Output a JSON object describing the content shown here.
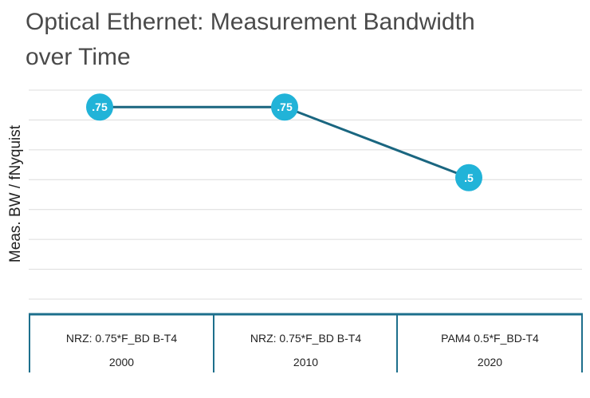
{
  "chart_data": {
    "type": "line",
    "title": "Optical Ethernet: Measurement Bandwidth over Time",
    "ylabel": "Meas. BW / fNyquist",
    "xlabel": "",
    "categories": [
      "2000",
      "2010",
      "2020"
    ],
    "category_labels": [
      "NRZ: 0.75*F_BD B-T4",
      "NRZ: 0.75*F_BD B-T4",
      "PAM4 0.5*F_BD-T4"
    ],
    "values": [
      0.75,
      0.75,
      0.5
    ],
    "data_labels": [
      ".75",
      ".75",
      ".5"
    ],
    "ylim": [
      0.07,
      0.81
    ],
    "grid": true,
    "legend": "none",
    "colors": {
      "line": "#1a6680",
      "marker": "#21b3d8",
      "table_border": "#1d6f8c",
      "grid": "#dcdcdc"
    }
  }
}
